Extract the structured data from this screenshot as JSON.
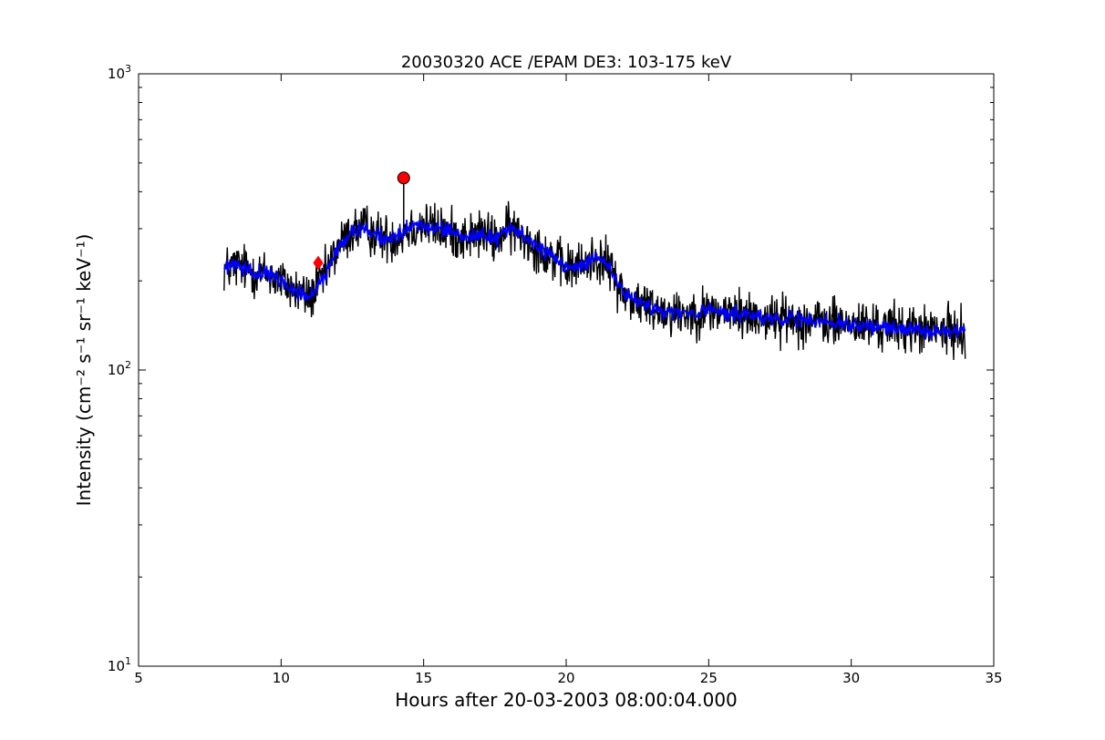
{
  "chart_data": {
    "type": "line",
    "title": "20030320 ACE /EPAM DE3: 103-175 keV",
    "xlabel": "Hours after 20-03-2003 08:00:04.000",
    "ylabel": "Intensity (cm⁻² s⁻¹ sr⁻¹ keV⁻¹)",
    "xlim": [
      5,
      35
    ],
    "ylim": [
      10,
      1000
    ],
    "yscale": "log",
    "grid": false,
    "x_ticks": [
      5,
      10,
      15,
      20,
      25,
      30,
      35
    ],
    "x_tick_labels": [
      "5",
      "10",
      "15",
      "20",
      "25",
      "30",
      "35"
    ],
    "y_ticks": [
      10,
      100,
      1000
    ],
    "y_tick_labels": [
      {
        "base": "10",
        "exp": "1"
      },
      {
        "base": "10",
        "exp": "2"
      },
      {
        "base": "10",
        "exp": "3"
      }
    ],
    "series": [
      {
        "color": "#000000",
        "style": "raw",
        "trend_x": [
          8.0,
          8.5,
          9.0,
          9.5,
          10.0,
          10.5,
          11.0,
          11.5,
          12.0,
          12.5,
          13.0,
          13.5,
          14.0,
          14.5,
          15.0,
          15.5,
          16.0,
          16.5,
          17.0,
          17.5,
          18.0,
          18.5,
          19.0,
          19.5,
          20.0,
          20.5,
          21.0,
          21.5,
          22.0,
          22.5,
          23.0,
          24.0,
          25.0,
          26.0,
          27.0,
          28.0,
          29.0,
          30.0,
          31.0,
          32.0,
          33.0,
          34.0
        ],
        "trend_y": [
          220,
          225,
          215,
          210,
          200,
          185,
          175,
          205,
          260,
          295,
          300,
          280,
          280,
          300,
          310,
          300,
          290,
          280,
          290,
          275,
          300,
          285,
          260,
          240,
          220,
          225,
          240,
          225,
          180,
          170,
          162,
          155,
          158,
          155,
          150,
          148,
          145,
          142,
          140,
          138,
          135,
          135
        ],
        "jitter": 0.28
      },
      {
        "color": "#0000ff",
        "style": "smoothed",
        "trend_x": [
          8.0,
          8.5,
          9.0,
          9.5,
          10.0,
          10.5,
          11.0,
          11.5,
          12.0,
          12.5,
          13.0,
          13.5,
          14.0,
          14.5,
          15.0,
          15.5,
          16.0,
          16.5,
          17.0,
          17.5,
          18.0,
          18.5,
          19.0,
          19.5,
          20.0,
          20.5,
          21.0,
          21.5,
          22.0,
          22.5,
          23.0,
          24.0,
          25.0,
          26.0,
          27.0,
          28.0,
          29.0,
          30.0,
          31.0,
          32.0,
          33.0,
          34.0
        ],
        "trend_y": [
          220,
          225,
          215,
          210,
          200,
          185,
          175,
          205,
          260,
          295,
          300,
          280,
          280,
          300,
          310,
          300,
          290,
          280,
          290,
          275,
          300,
          285,
          260,
          240,
          220,
          225,
          240,
          225,
          180,
          170,
          162,
          155,
          158,
          155,
          150,
          148,
          145,
          142,
          140,
          138,
          135,
          135
        ],
        "jitter": 0.09
      }
    ],
    "markers": [
      {
        "x": 11.3,
        "y": 230,
        "shape": "diamond",
        "color": "#ff0000"
      },
      {
        "x": 14.3,
        "y": 445,
        "shape": "circle",
        "color": "#ff0000"
      }
    ]
  }
}
